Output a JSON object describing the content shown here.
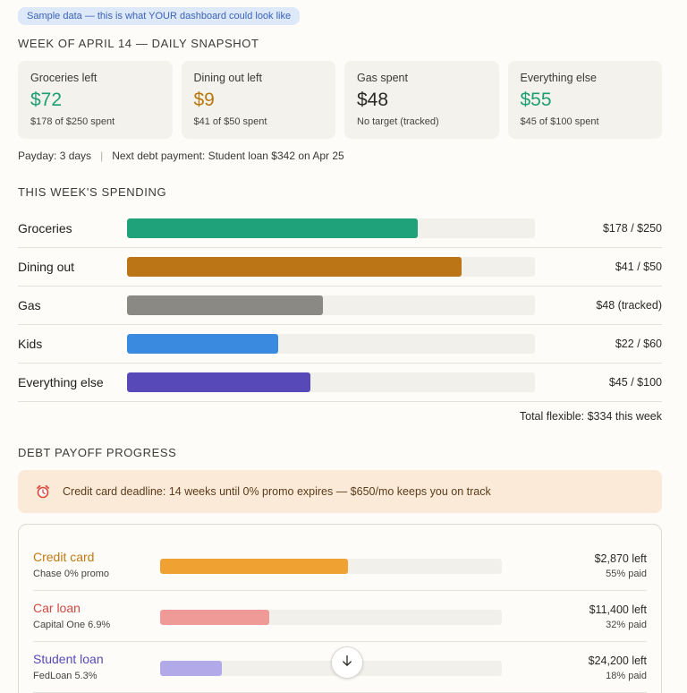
{
  "badge": "Sample data — this is what YOUR dashboard could look like",
  "snapshot_title": "WEEK OF APRIL 14 — DAILY SNAPSHOT",
  "cards": [
    {
      "label": "Groceries left",
      "value": "$72",
      "sub": "$178 of $250 spent",
      "color": "#1f9e74"
    },
    {
      "label": "Dining out left",
      "value": "$9",
      "sub": "$41 of $50 spent",
      "color": "#b8770f"
    },
    {
      "label": "Gas spent",
      "value": "$48",
      "sub": "No target (tracked)",
      "color": "#2a2925"
    },
    {
      "label": "Everything else",
      "value": "$55",
      "sub": "$45 of $100 spent",
      "color": "#1f9e74"
    }
  ],
  "payday": "Payday: 3 days",
  "separator": "|",
  "next_debt": "Next debt payment: Student loan $342 on Apr 25",
  "spending_title": "THIS WEEK'S SPENDING",
  "spending": [
    {
      "label": "Groceries",
      "amount": "$178 / $250",
      "progress": 0.712,
      "color": "#1fa27a"
    },
    {
      "label": "Dining out",
      "amount": "$41 / $50",
      "progress": 0.82,
      "color": "#bb7416"
    },
    {
      "label": "Gas",
      "amount": "$48 (tracked)",
      "progress": 0.48,
      "color": "#8a8983"
    },
    {
      "label": "Kids",
      "amount": "$22 / $60",
      "progress": 0.37,
      "color": "#3a8be0"
    },
    {
      "label": "Everything else",
      "amount": "$45 / $100",
      "progress": 0.45,
      "color": "#574ab8"
    }
  ],
  "total_flexible": "Total flexible: $334 this week",
  "debt_title": "DEBT PAYOFF PROGRESS",
  "alert_text": "Credit card deadline: 14 weeks until 0% promo expires — $650/mo keeps you on track",
  "alert_icon": "alarm-clock-icon",
  "debts": [
    {
      "name": "Credit card",
      "lender": "Chase 0% promo",
      "left": "$2,870 left",
      "paid": "55% paid",
      "progress": 0.55,
      "name_color": "#c17a12",
      "bar_color": "#efa232"
    },
    {
      "name": "Car loan",
      "lender": "Capital One 6.9%",
      "left": "$11,400 left",
      "paid": "32% paid",
      "progress": 0.32,
      "name_color": "#cf4a42",
      "bar_color": "#f09a98"
    },
    {
      "name": "Student loan",
      "lender": "FedLoan 5.3%",
      "left": "$24,200 left",
      "paid": "18% paid",
      "progress": 0.18,
      "name_color": "#574ab8",
      "bar_color": "#b2aae8"
    }
  ],
  "scroll_icon": "arrow-down-icon"
}
